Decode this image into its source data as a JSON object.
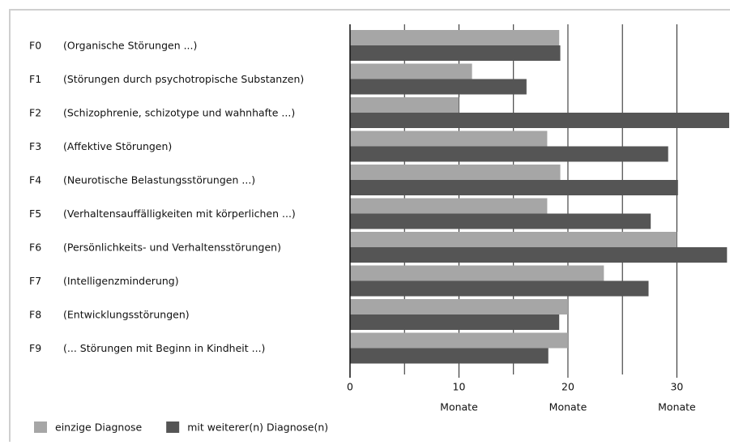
{
  "chart_data": {
    "type": "bar",
    "orientation": "horizontal",
    "codes": [
      "F0",
      "F1",
      "F2",
      "F3",
      "F4",
      "F5",
      "F6",
      "F7",
      "F8",
      "F9"
    ],
    "categories": [
      "(Organische Störungen ...)",
      "(Störungen durch psychotropische Substanzen)",
      "(Schizophrenie, schizotype und wahnhafte ...)",
      "(Affektive Störungen)",
      "(Neurotische Belastungsstörungen ...)",
      "(Verhaltensauffälligkeiten mit körperlichen ...)",
      "(Persönlichkeits- und Verhaltensstörungen)",
      "(Intelligenzminderung)",
      "(Entwicklungsstörungen)",
      "(... Störungen mit Beginn in Kindheit ...)"
    ],
    "series": [
      {
        "name": "einzige Diagnose",
        "color": "#a6a6a6",
        "values": [
          19.2,
          11.2,
          10.0,
          18.1,
          19.3,
          18.1,
          30.0,
          23.3,
          20.0,
          20.0
        ]
      },
      {
        "name": "mit weiterer(n) Diagnose(n)",
        "color": "#555555",
        "values": [
          19.3,
          16.2,
          34.8,
          29.2,
          30.1,
          27.6,
          34.6,
          27.4,
          19.2,
          18.2
        ]
      }
    ],
    "xlim": [
      0,
      34.8
    ],
    "xticks": [
      0,
      10,
      20,
      30
    ],
    "minor_xticks": [
      5,
      15,
      25
    ],
    "unit_label": "Monate",
    "grid": true
  }
}
